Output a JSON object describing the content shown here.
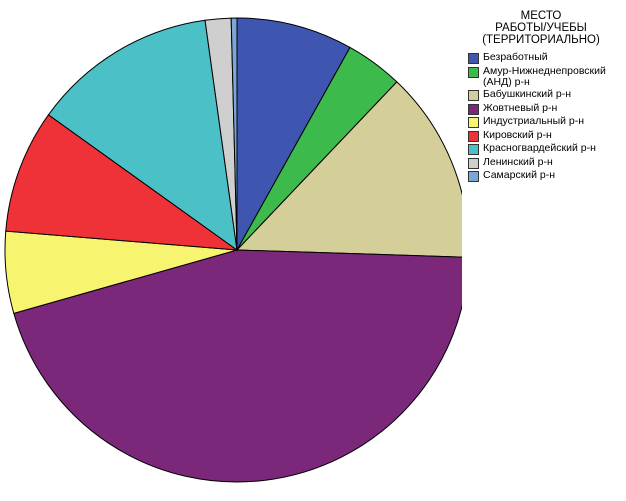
{
  "chart_data": {
    "type": "pie",
    "legend_title": [
      "МЕСТО",
      "РАБОТЫ/УЧЕБЫ",
      "(ТЕРРИТОРИАЛЬНО)"
    ],
    "categories": [
      "Безработный",
      "Амур-Нижнеднепровский (АНД) р-н",
      "Бабушкинский р-н",
      "Жовтневый р-н",
      "Индустриальный р-н",
      "Кировский р-н",
      "Красногвардейский р-н",
      "Ленинский р-н",
      "Самарский р-н"
    ],
    "values": [
      8.1,
      4.0,
      13.4,
      45.1,
      5.7,
      8.6,
      12.9,
      1.8,
      0.4
    ],
    "colors": [
      "#3f56b0",
      "#3cba4c",
      "#d4cf98",
      "#7b287b",
      "#f7f570",
      "#ee3238",
      "#4bc0c6",
      "#cfcfcf",
      "#7aa6d8"
    ]
  }
}
